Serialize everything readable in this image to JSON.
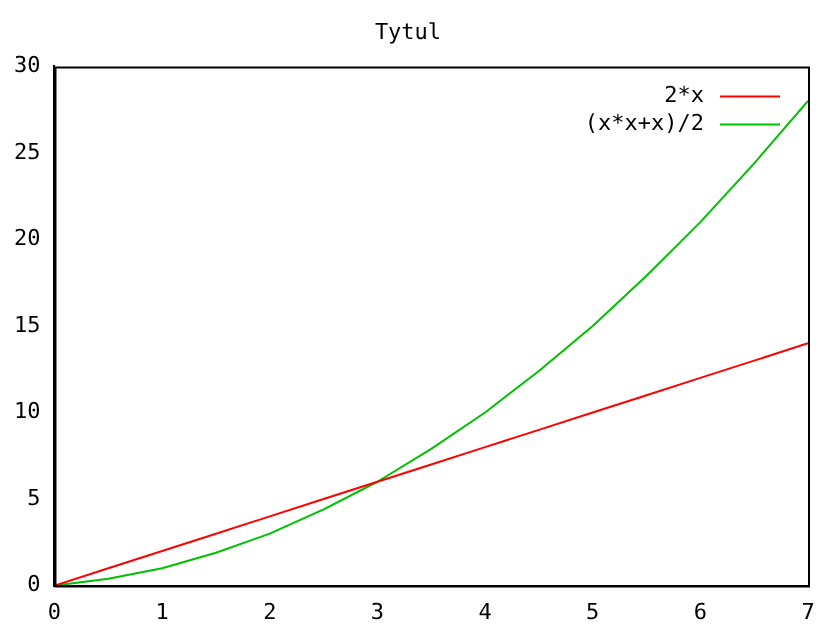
{
  "chart_data": {
    "type": "line",
    "title": "Tytul",
    "x": [
      0,
      0.5,
      1,
      1.5,
      2,
      2.5,
      3,
      3.5,
      4,
      4.5,
      5,
      5.5,
      6,
      6.5,
      7
    ],
    "series": [
      {
        "name": "2*x",
        "color": "#ff0000",
        "values": [
          0,
          1,
          2,
          3,
          4,
          5,
          6,
          7,
          8,
          9,
          10,
          11,
          12,
          13,
          14
        ]
      },
      {
        "name": "(x*x+x)/2",
        "color": "#00c000",
        "values": [
          0,
          0.4,
          1,
          1.9,
          3,
          4.4,
          6,
          7.9,
          10,
          12.4,
          15,
          17.9,
          21,
          24.4,
          28
        ]
      }
    ],
    "xlim": [
      0,
      7
    ],
    "xticks": [
      0,
      1,
      2,
      3,
      4,
      5,
      6,
      7
    ],
    "ylim": [
      0,
      30
    ],
    "yticks": [
      0,
      5,
      10,
      15,
      20,
      25,
      30
    ],
    "grid": false,
    "legend": "top right",
    "marker": "none",
    "line_style": "solid"
  }
}
